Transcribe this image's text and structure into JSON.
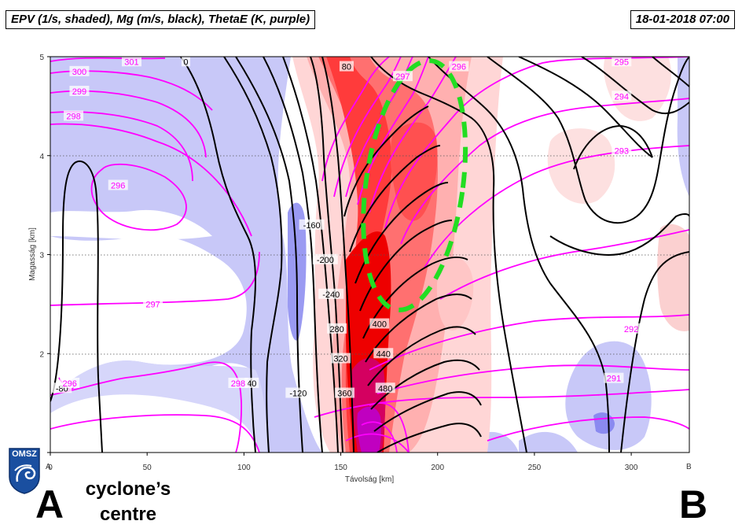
{
  "header": {
    "title": "EPV (1/s, shaded), Mg (m/s, black), ThetaE (K, purple)",
    "datetime": "18-01-2018 07:00"
  },
  "annotations": {
    "letter_a": "A",
    "letter_b": "B",
    "cyclone_line1": "cyclone’s",
    "cyclone_line2": "centre",
    "logo_text": "OMSZ"
  },
  "colors": {
    "epv_positive": "#ff0000",
    "epv_negative": "#8080ff",
    "mg_contour": "#000000",
    "thetae_contour": "#ff00ff",
    "highlight": "#22dd22"
  },
  "chart_data": {
    "type": "contour",
    "title": "EPV (1/s, shaded), Mg (m/s, black), ThetaE (K, purple)",
    "xlabel": "Távolság [km]",
    "ylabel": "Magasság [km]",
    "xlim": [
      0,
      330
    ],
    "ylim": [
      1,
      5
    ],
    "xticks": [
      0,
      50,
      100,
      150,
      200,
      250,
      300
    ],
    "yticks": [
      1,
      2,
      3,
      4,
      5
    ],
    "xtick_labels": [
      "0",
      "50",
      "100",
      "150",
      "200",
      "250",
      "300"
    ],
    "ytick_labels": [
      "",
      "2",
      "3",
      "4",
      "5"
    ],
    "section_endpoints": [
      "A",
      "B"
    ],
    "grid": "horizontal dotted",
    "mg_contour_labels": [
      {
        "text": "-80",
        "x": 6,
        "y": 1.65
      },
      {
        "text": "0",
        "x": 70,
        "y": 4.95
      },
      {
        "text": "40",
        "x": 104,
        "y": 1.7
      },
      {
        "text": "-120",
        "x": 128,
        "y": 1.6
      },
      {
        "text": "-160",
        "x": 135,
        "y": 3.3
      },
      {
        "text": "-200",
        "x": 142,
        "y": 2.95
      },
      {
        "text": "-240",
        "x": 145,
        "y": 2.6
      },
      {
        "text": "280",
        "x": 148,
        "y": 2.25
      },
      {
        "text": "320",
        "x": 150,
        "y": 1.95
      },
      {
        "text": "360",
        "x": 152,
        "y": 1.6
      },
      {
        "text": "400",
        "x": 170,
        "y": 2.3
      },
      {
        "text": "440",
        "x": 172,
        "y": 2.0
      },
      {
        "text": "480",
        "x": 173,
        "y": 1.65
      },
      {
        "text": "80",
        "x": 153,
        "y": 4.9
      }
    ],
    "thetae_contour_labels": [
      {
        "text": "301",
        "x": 42,
        "y": 4.95
      },
      {
        "text": "300",
        "x": 15,
        "y": 4.85
      },
      {
        "text": "299",
        "x": 15,
        "y": 4.65
      },
      {
        "text": "298",
        "x": 12,
        "y": 4.4
      },
      {
        "text": "296",
        "x": 35,
        "y": 3.7
      },
      {
        "text": "297",
        "x": 53,
        "y": 2.5
      },
      {
        "text": "298",
        "x": 97,
        "y": 1.7
      },
      {
        "text": "296",
        "x": 10,
        "y": 1.7
      },
      {
        "text": "297",
        "x": 182,
        "y": 4.8
      },
      {
        "text": "296",
        "x": 211,
        "y": 4.9
      },
      {
        "text": "295",
        "x": 295,
        "y": 4.95
      },
      {
        "text": "294",
        "x": 295,
        "y": 4.6
      },
      {
        "text": "293",
        "x": 295,
        "y": 4.05
      },
      {
        "text": "292",
        "x": 300,
        "y": 2.25
      },
      {
        "text": "291",
        "x": 291,
        "y": 1.75
      }
    ],
    "highlight_ellipse": {
      "cx": 188,
      "cy": 3.7,
      "rx": 25,
      "ry": 1.27,
      "style": "dashed",
      "color": "green"
    }
  }
}
